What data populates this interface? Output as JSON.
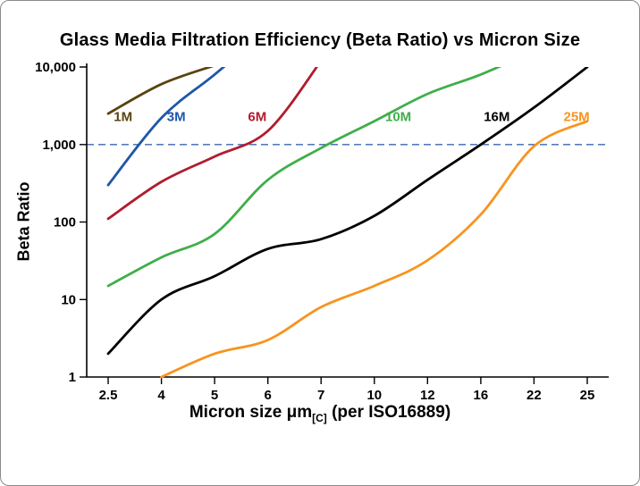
{
  "chart_data": {
    "type": "line",
    "title": "Glass Media Filtration Efficiency (Beta Ratio) vs Micron Size",
    "xlabel": "Micron size μm[C] (per ISO16889)",
    "xlabel_parts": {
      "main": "Micron size μm",
      "sub": "[C]",
      "rest": " (per ISO16889)"
    },
    "ylabel": "Beta Ratio",
    "x_scale": "categorical",
    "y_scale": "log",
    "ylim": [
      1,
      10000
    ],
    "grid": "off",
    "legend": "inline-labels",
    "categories": [
      2.5,
      4,
      5,
      6,
      7,
      10,
      12,
      16,
      22,
      25
    ],
    "x_tick_labels": [
      "2.5",
      "4",
      "5",
      "6",
      "7",
      "10",
      "12",
      "16",
      "22",
      "25"
    ],
    "y_tick_values": [
      1,
      10,
      100,
      1000,
      10000
    ],
    "y_tick_labels": [
      "1",
      "10",
      "100",
      "1,000",
      "10,000"
    ],
    "reference_line": {
      "value": 1000,
      "color": "#3c66b0",
      "style": "dashed"
    },
    "offscale_note": "series values greater than 10000 are off-scale; the curve is clipped at the top axis (beta 10,000)",
    "series": [
      {
        "name": "1M",
        "color": "#5a4310",
        "values": [
          2500,
          6000,
          10500,
          null,
          null,
          null,
          null,
          null,
          null,
          null
        ],
        "label": {
          "xi": 0.28,
          "y": 2300
        }
      },
      {
        "name": "3M",
        "color": "#1f56a8",
        "values": [
          300,
          2200,
          8000,
          30000,
          null,
          null,
          null,
          null,
          null,
          null
        ],
        "label": {
          "xi": 1.28,
          "y": 2300
        }
      },
      {
        "name": "6M",
        "color": "#b01c2e",
        "values": [
          110,
          330,
          700,
          1500,
          12000,
          null,
          null,
          null,
          null,
          null
        ],
        "label": {
          "xi": 2.8,
          "y": 2300
        }
      },
      {
        "name": "10M",
        "color": "#3fae49",
        "values": [
          15,
          35,
          70,
          350,
          900,
          2000,
          4500,
          8000,
          16000,
          null
        ],
        "label": {
          "xi": 5.45,
          "y": 2300
        }
      },
      {
        "name": "16M",
        "color": "#000000",
        "values": [
          2,
          10,
          20,
          45,
          60,
          120,
          350,
          1000,
          3000,
          10000
        ],
        "label": {
          "xi": 7.3,
          "y": 2300
        }
      },
      {
        "name": "25M",
        "color": "#f79420",
        "values": [
          null,
          1,
          2,
          3,
          8,
          15,
          32,
          125,
          950,
          2000
        ],
        "label": {
          "xi": 8.8,
          "y": 2300
        }
      }
    ]
  },
  "colors": {
    "background": "#ffffff",
    "axis": "#000000",
    "border": "#8c8c8c"
  }
}
